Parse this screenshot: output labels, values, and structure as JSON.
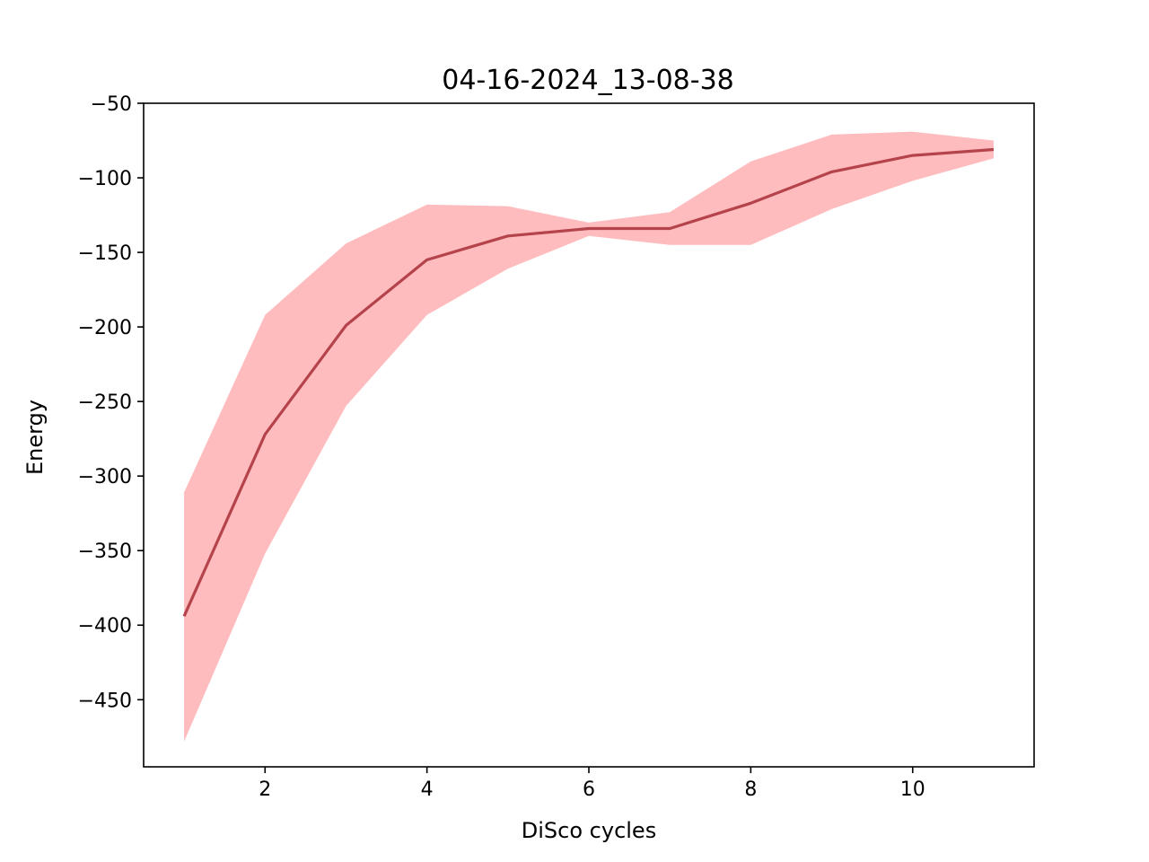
{
  "chart_data": {
    "type": "line",
    "title": "04-16-2024_13-08-38",
    "xlabel": "DiSco cycles",
    "ylabel": "Energy",
    "xlim": [
      0.5,
      11.5
    ],
    "ylim": [
      -495,
      -50
    ],
    "x_ticks": [
      2,
      4,
      6,
      8,
      10
    ],
    "x_tick_labels": [
      "2",
      "4",
      "6",
      "8",
      "10"
    ],
    "y_ticks": [
      -50,
      -100,
      -150,
      -200,
      -250,
      -300,
      -350,
      -400,
      -450
    ],
    "y_tick_labels": [
      "−50",
      "−100",
      "−150",
      "−200",
      "−250",
      "−300",
      "−350",
      "−400",
      "−450"
    ],
    "grid": false,
    "series": [
      {
        "x": [
          1,
          2,
          3,
          4,
          5,
          6,
          7,
          8,
          9,
          10,
          11
        ],
        "values": [
          -394,
          -272,
          -199,
          -155,
          -139,
          -134,
          -134,
          -117,
          -96,
          -85,
          -81
        ],
        "lower": [
          -478,
          -352,
          -253,
          -192,
          -161,
          -139,
          -145,
          -145,
          -121,
          -102,
          -87
        ],
        "upper": [
          -311,
          -192,
          -144,
          -118,
          -119,
          -130,
          -123,
          -89,
          -71,
          -69,
          -75
        ],
        "color": "#b5434b",
        "band_color": "#ffbcbe"
      }
    ]
  }
}
